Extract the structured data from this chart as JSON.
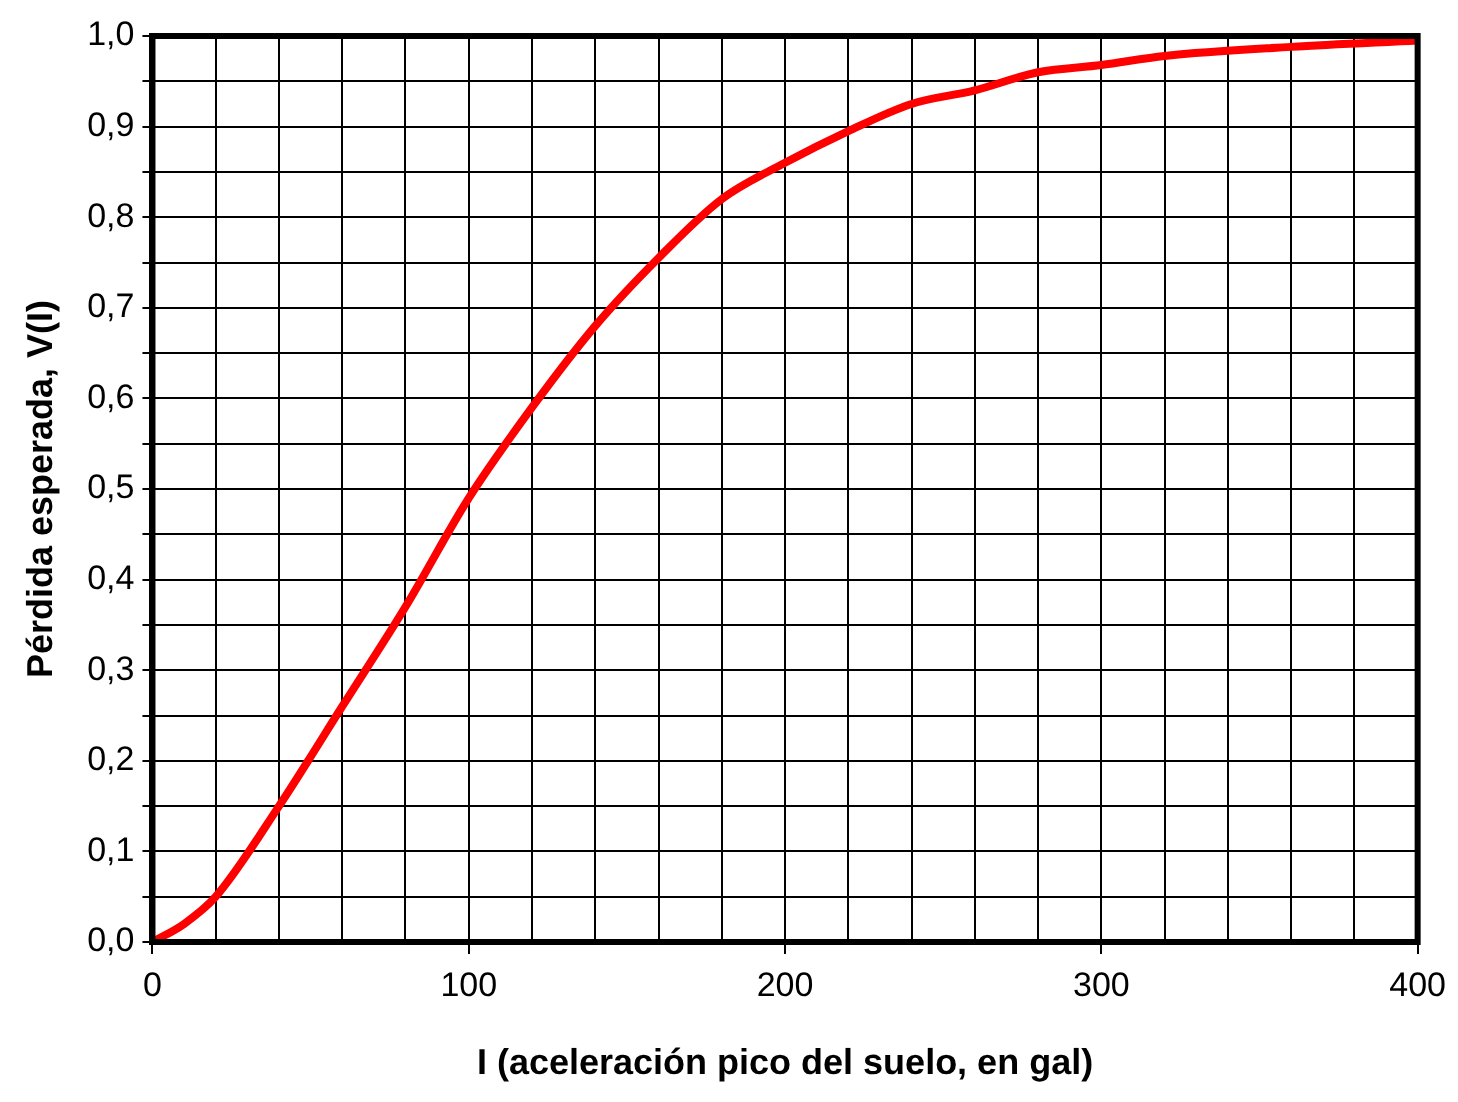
{
  "chart_data": {
    "type": "line",
    "xlabel": "I (aceleración pico del suelo, en gal)",
    "ylabel": "Pérdida esperada, V(I)",
    "x": [
      0,
      10,
      20,
      40,
      60,
      80,
      100,
      120,
      140,
      160,
      180,
      200,
      220,
      240,
      260,
      280,
      300,
      320,
      360,
      400
    ],
    "series": [
      {
        "color": "#ff0000",
        "values": [
          0,
          0.02,
          0.05,
          0.15,
          0.26,
          0.37,
          0.49,
          0.59,
          0.68,
          0.755,
          0.82,
          0.86,
          0.895,
          0.925,
          0.94,
          0.96,
          0.968,
          0.978,
          0.988,
          0.995
        ]
      }
    ],
    "xlim": [
      0,
      400
    ],
    "xticks": [
      0,
      {
        "value": 20,
        "label": null
      },
      {
        "value": 40,
        "label": null
      },
      {
        "value": 60,
        "label": null
      },
      {
        "value": 80,
        "label": null
      },
      100,
      {
        "value": 120,
        "label": null
      },
      {
        "value": 140,
        "label": null
      },
      {
        "value": 160,
        "label": null
      },
      {
        "value": 180,
        "label": null
      },
      200,
      {
        "value": 220,
        "label": null
      },
      {
        "value": 240,
        "label": null
      },
      {
        "value": 260,
        "label": null
      },
      {
        "value": 280,
        "label": null
      },
      300,
      {
        "value": 320,
        "label": null
      },
      {
        "value": 340,
        "label": null
      },
      {
        "value": 360,
        "label": null
      },
      {
        "value": 380,
        "label": null
      },
      400
    ],
    "ylim": [
      0,
      1
    ],
    "yticks": [
      {
        "value": 0,
        "label": "0,0"
      },
      {
        "value": 0.05,
        "label": null
      },
      {
        "value": 0.1,
        "label": "0,1"
      },
      {
        "value": 0.15,
        "label": null
      },
      {
        "value": 0.2,
        "label": "0,2"
      },
      {
        "value": 0.25,
        "label": null
      },
      {
        "value": 0.3,
        "label": "0,3"
      },
      {
        "value": 0.35,
        "label": null
      },
      {
        "value": 0.4,
        "label": "0,4"
      },
      {
        "value": 0.45,
        "label": null
      },
      {
        "value": 0.5,
        "label": "0,5"
      },
      {
        "value": 0.55,
        "label": null
      },
      {
        "value": 0.6,
        "label": "0,6"
      },
      {
        "value": 0.65,
        "label": null
      },
      {
        "value": 0.7,
        "label": "0,7"
      },
      {
        "value": 0.75,
        "label": null
      },
      {
        "value": 0.8,
        "label": "0,8"
      },
      {
        "value": 0.85,
        "label": null
      },
      {
        "value": 0.9,
        "label": "0,9"
      },
      {
        "value": 0.95,
        "label": null
      },
      {
        "value": 1,
        "label": "1,0"
      }
    ],
    "grid": true,
    "legend": false,
    "marker": "none",
    "line_style": "solid"
  }
}
